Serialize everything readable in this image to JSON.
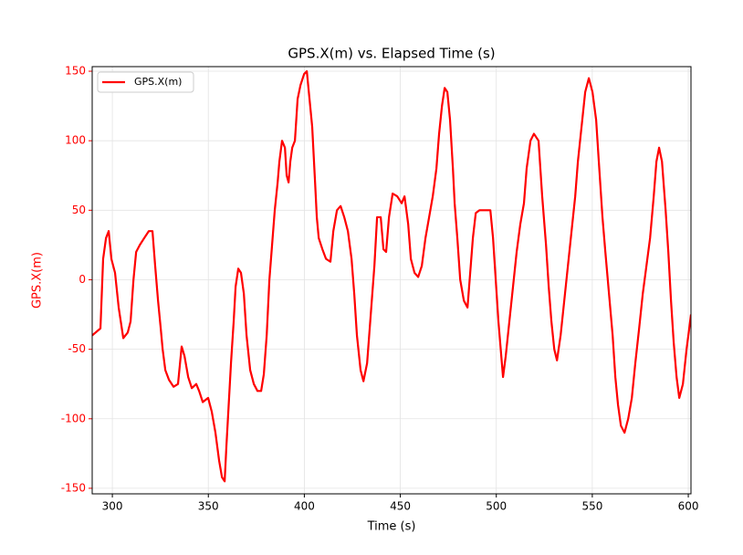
{
  "chart_data": {
    "type": "line",
    "title": "GPS.X(m) vs. Elapsed Time (s)",
    "xlabel": "Time (s)",
    "ylabel": "GPS.X(m)",
    "x": [
      289.5,
      293.8,
      295.2,
      296.7,
      298.1,
      299.5,
      301.4,
      303.3,
      305.7,
      308,
      309.5,
      311,
      312.4,
      314.3,
      316.6,
      319,
      320.9,
      322.3,
      323.8,
      325.2,
      326.2,
      327.6,
      329.5,
      331.9,
      334.2,
      336.1,
      337.6,
      339.5,
      341.4,
      343.7,
      345.2,
      347.1,
      349.9,
      351.8,
      353.7,
      355.6,
      357.1,
      358.5,
      359.4,
      360.4,
      361.8,
      363.2,
      364.2,
      365.6,
      367,
      368.5,
      369.9,
      371.8,
      373.7,
      375.6,
      377.5,
      378.9,
      380.4,
      381.8,
      383.2,
      384.6,
      386.1,
      387,
      388.4,
      389.9,
      390.8,
      391.8,
      392.7,
      393.7,
      395.1,
      396.5,
      398,
      399.9,
      401.3,
      402.7,
      404.1,
      405.6,
      406.5,
      407.5,
      409.4,
      411.3,
      413.6,
      415.1,
      417,
      418.9,
      420.8,
      422.7,
      424.6,
      426,
      427.4,
      429.3,
      430.8,
      432.7,
      434.6,
      436.5,
      437.9,
      439.8,
      441.2,
      442.6,
      444.1,
      446,
      448.4,
      450.7,
      452.2,
      454.1,
      455.5,
      457.4,
      459.3,
      461.2,
      463.1,
      465,
      466.9,
      468.8,
      470.2,
      471.7,
      473.1,
      474.5,
      475.9,
      477.4,
      478.3,
      479.7,
      481.2,
      483.1,
      485,
      486.4,
      487.8,
      489.3,
      491.2,
      494,
      496.9,
      498.3,
      499.7,
      501.1,
      502.6,
      503.5,
      504.9,
      506.8,
      508.7,
      510.6,
      512.5,
      514.4,
      515.8,
      517.8,
      519.6,
      522,
      523.9,
      525.9,
      527.3,
      528.7,
      530.2,
      531.6,
      533.5,
      535.4,
      537.3,
      539.2,
      541.1,
      542.5,
      544.4,
      546.3,
      548.2,
      550.1,
      552,
      553.4,
      555.3,
      556.8,
      558.7,
      560.6,
      562,
      563.4,
      564.9,
      566.8,
      568.7,
      570.6,
      572.4,
      574.4,
      576.3,
      578.2,
      580.1,
      582,
      583.4,
      584.8,
      586.3,
      588.2,
      589.6,
      591,
      592.4,
      593.9,
      595.3,
      597.2,
      599.1,
      600.5,
      601.4
    ],
    "series": [
      {
        "name": "GPS.X(m)",
        "color": "#ff0000",
        "values": [
          -40,
          -35,
          15,
          30,
          35,
          15,
          5,
          -20,
          -42,
          -38,
          -30,
          0,
          20,
          25,
          30,
          35,
          35,
          10,
          -15,
          -35,
          -50,
          -65,
          -72,
          -77,
          -75,
          -48,
          -55,
          -70,
          -78,
          -75,
          -80,
          -88,
          -85,
          -95,
          -110,
          -130,
          -142,
          -145,
          -120,
          -95,
          -60,
          -30,
          -5,
          8,
          5,
          -10,
          -40,
          -65,
          -75,
          -80,
          -80,
          -68,
          -40,
          0,
          25,
          50,
          70,
          85,
          100,
          95,
          75,
          70,
          85,
          95,
          100,
          130,
          140,
          148,
          150,
          130,
          110,
          70,
          45,
          30,
          22,
          15,
          13,
          35,
          50,
          53,
          45,
          35,
          15,
          -10,
          -40,
          -65,
          -73,
          -60,
          -25,
          10,
          45,
          45,
          22,
          20,
          45,
          62,
          60,
          55,
          60,
          40,
          15,
          5,
          2,
          10,
          30,
          45,
          60,
          80,
          105,
          125,
          138,
          135,
          115,
          80,
          55,
          30,
          0,
          -15,
          -20,
          5,
          30,
          48,
          50,
          50,
          50,
          30,
          0,
          -30,
          -55,
          -70,
          -55,
          -30,
          -5,
          20,
          40,
          55,
          80,
          100,
          105,
          100,
          60,
          25,
          -5,
          -30,
          -50,
          -58,
          -40,
          -15,
          10,
          35,
          60,
          85,
          110,
          135,
          145,
          135,
          115,
          85,
          45,
          20,
          -10,
          -40,
          -70,
          -90,
          -105,
          -110,
          -100,
          -85,
          -60,
          -35,
          -10,
          10,
          30,
          60,
          85,
          95,
          85,
          50,
          20,
          -15,
          -45,
          -70,
          -85,
          -75,
          -50,
          -35,
          -25
        ]
      }
    ],
    "xlim": [
      289.5,
      601.4
    ],
    "ylim": [
      -154,
      153.3
    ],
    "xticks": [
      300,
      350,
      400,
      450,
      500,
      550,
      600
    ],
    "yticks": [
      -150,
      -100,
      -50,
      0,
      50,
      100,
      150
    ],
    "grid": true,
    "legend": "upper left",
    "ytick_color": "#ff0000"
  }
}
